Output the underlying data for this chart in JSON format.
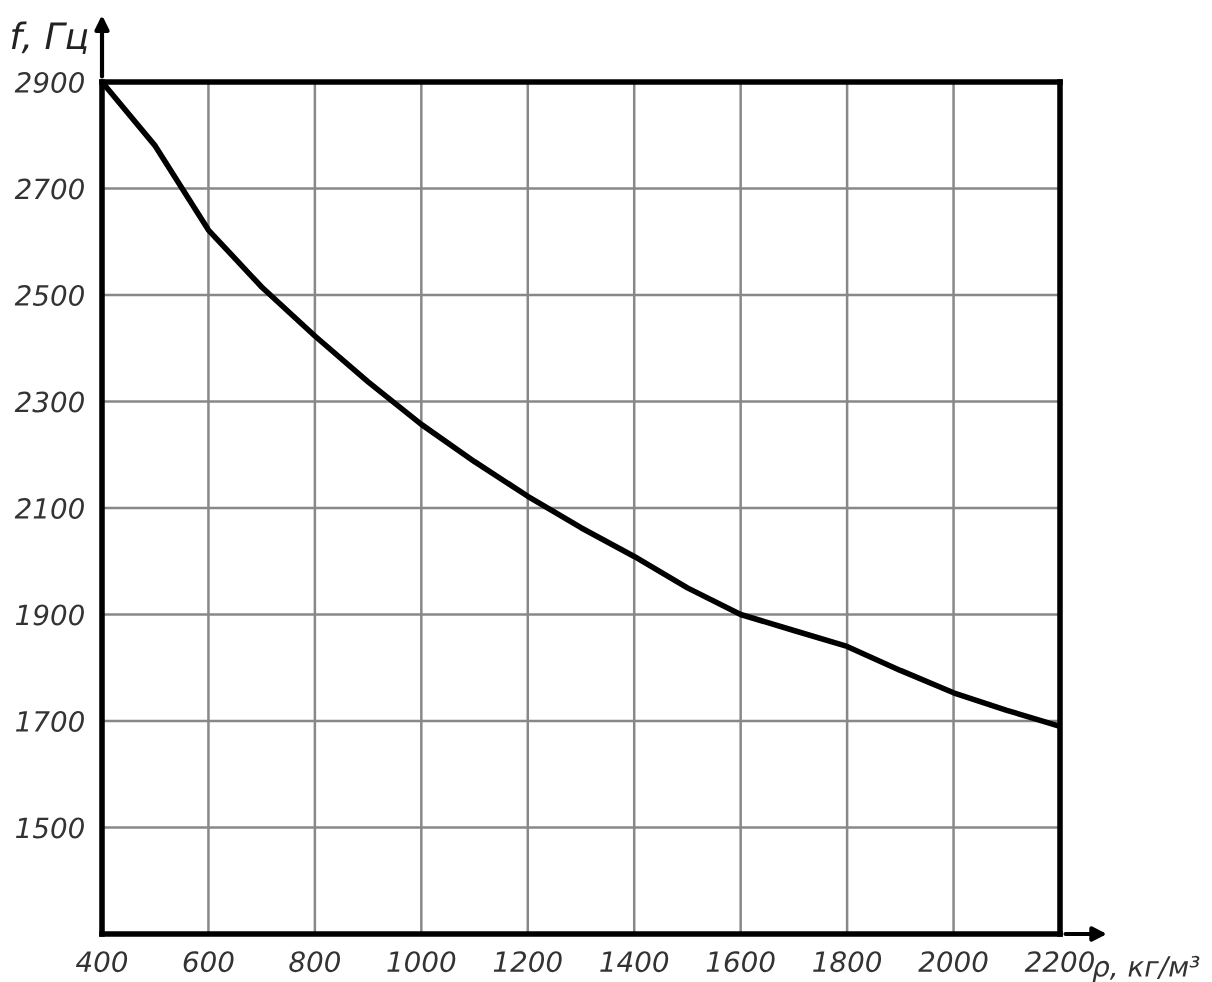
{
  "chart_data": {
    "type": "line",
    "xlabel": "ρ, кг/м³",
    "ylabel": "f, Гц",
    "x": [
      400,
      500,
      600,
      700,
      800,
      900,
      1000,
      1100,
      1200,
      1300,
      1400,
      1500,
      1600,
      1700,
      1800,
      1900,
      2000,
      2100,
      2200
    ],
    "series": [
      {
        "color": "#000000",
        "values": [
          2900,
          2780,
          2622,
          2515,
          2423,
          2337,
          2257,
          2187,
          2122,
          2063,
          2009,
          1950,
          1900,
          1870,
          1840,
          1795,
          1753,
          1720,
          1690
        ]
      }
    ],
    "xlim": [
      400,
      2200
    ],
    "xticks": [
      400,
      600,
      800,
      1000,
      1200,
      1400,
      1600,
      1800,
      2000,
      2200
    ],
    "ylim": [
      1300,
      2900
    ],
    "yticks": [
      1500,
      1700,
      1900,
      2100,
      2300,
      2500,
      2700,
      2900
    ],
    "grid": true,
    "marker": "none",
    "line_style": "solid"
  }
}
